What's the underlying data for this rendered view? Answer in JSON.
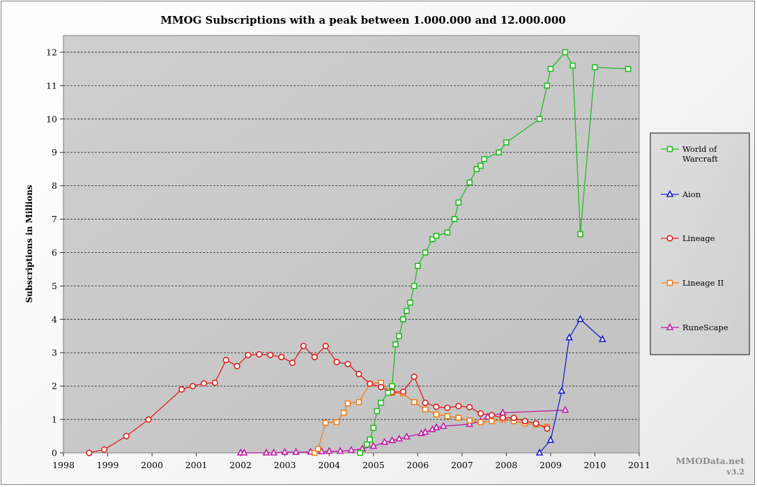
{
  "chart_data": {
    "type": "line",
    "title": "MMOG Subscriptions with a peak between 1.000.000 and 12.000.000",
    "xlabel": "",
    "ylabel": "Subscriptions in Millions",
    "xlim": [
      1998,
      2011
    ],
    "ylim": [
      0,
      12.5
    ],
    "xticks": [
      "1998",
      "1999",
      "2000",
      "2001",
      "2002",
      "2003",
      "2004",
      "2005",
      "2006",
      "2007",
      "2008",
      "2009",
      "2010",
      "2011"
    ],
    "yticks": [
      "0",
      "1",
      "2",
      "3",
      "4",
      "5",
      "6",
      "7",
      "8",
      "9",
      "10",
      "11",
      "12"
    ],
    "grid": "horizontal dashed",
    "legend_position": "right",
    "series": [
      {
        "name": "World of Warcraft",
        "color": "#22bb22",
        "marker": "square",
        "x": [
          2004.7,
          2004.85,
          2004.92,
          2005.0,
          2005.08,
          2005.17,
          2005.33,
          2005.42,
          2005.5,
          2005.58,
          2005.67,
          2005.75,
          2005.83,
          2005.92,
          2006.0,
          2006.17,
          2006.33,
          2006.42,
          2006.67,
          2006.83,
          2006.92,
          2007.17,
          2007.33,
          2007.42,
          2007.5,
          2007.83,
          2008.0,
          2008.75,
          2008.92,
          2009.0,
          2009.33,
          2009.5,
          2009.67,
          2010.0,
          2010.75
        ],
        "y": [
          0,
          0.25,
          0.4,
          0.75,
          1.25,
          1.5,
          1.8,
          2.0,
          3.25,
          3.5,
          4.0,
          4.25,
          4.5,
          5.0,
          5.6,
          6.0,
          6.4,
          6.5,
          6.6,
          7.0,
          7.5,
          8.1,
          8.5,
          8.6,
          8.8,
          9.0,
          9.3,
          10.0,
          11.0,
          11.5,
          12.0,
          11.6,
          6.55,
          11.55,
          11.5
        ]
      },
      {
        "name": "Aion",
        "color": "#1c1ccf",
        "marker": "triangle",
        "x": [
          2008.75,
          2009.0,
          2009.25,
          2009.42,
          2009.67,
          2010.17
        ],
        "y": [
          0,
          0.38,
          1.85,
          3.45,
          4.0,
          3.4
        ]
      },
      {
        "name": "Lineage",
        "color": "#dd1f1f",
        "marker": "circle",
        "x": [
          1998.58,
          1998.92,
          1999.42,
          1999.92,
          2000.67,
          2000.92,
          2001.17,
          2001.42,
          2001.67,
          2001.92,
          2002.17,
          2002.42,
          2002.67,
          2002.92,
          2003.17,
          2003.42,
          2003.67,
          2003.92,
          2004.17,
          2004.42,
          2004.67,
          2004.92,
          2005.17,
          2005.42,
          2005.67,
          2005.92,
          2006.17,
          2006.42,
          2006.67,
          2006.92,
          2007.17,
          2007.42,
          2007.67,
          2007.92,
          2008.17,
          2008.42,
          2008.67,
          2008.92
        ],
        "y": [
          0,
          0.1,
          0.5,
          1.0,
          1.9,
          2.0,
          2.08,
          2.1,
          2.78,
          2.6,
          2.93,
          2.95,
          2.93,
          2.87,
          2.7,
          3.2,
          2.87,
          3.2,
          2.72,
          2.66,
          2.36,
          2.07,
          1.97,
          1.82,
          1.83,
          2.28,
          1.5,
          1.38,
          1.35,
          1.4,
          1.37,
          1.18,
          1.13,
          1.05,
          1.05,
          0.95,
          0.88,
          0.73
        ]
      },
      {
        "name": "Lineage II",
        "color": "#f07d18",
        "marker": "square",
        "x": [
          2003.67,
          2003.75,
          2003.92,
          2004.17,
          2004.33,
          2004.42,
          2004.67,
          2004.92,
          2005.17,
          2005.42,
          2005.67,
          2005.92,
          2006.17,
          2006.42,
          2006.67,
          2006.92,
          2007.17,
          2007.42,
          2007.67,
          2007.92,
          2008.17,
          2008.42,
          2008.67,
          2008.92
        ],
        "y": [
          0,
          0.12,
          0.9,
          0.92,
          1.2,
          1.48,
          1.52,
          2.07,
          2.1,
          1.8,
          1.78,
          1.52,
          1.3,
          1.15,
          1.1,
          1.05,
          0.97,
          0.92,
          0.95,
          1.0,
          0.95,
          0.88,
          0.85,
          0.78
        ]
      },
      {
        "name": "RuneScape",
        "color": "#c01aa8",
        "marker": "triangle",
        "x": [
          2002.0,
          2002.08,
          2002.58,
          2002.75,
          2003.0,
          2003.25,
          2003.58,
          2003.83,
          2004.0,
          2004.25,
          2004.5,
          2004.75,
          2005.0,
          2005.25,
          2005.42,
          2005.58,
          2005.75,
          2006.08,
          2006.17,
          2006.33,
          2006.42,
          2006.58,
          2007.17,
          2007.42,
          2007.58,
          2007.92,
          2009.33
        ],
        "y": [
          0,
          0,
          0,
          0,
          0.02,
          0.02,
          0.03,
          0.04,
          0.05,
          0.05,
          0.08,
          0.12,
          0.2,
          0.32,
          0.37,
          0.42,
          0.48,
          0.58,
          0.62,
          0.7,
          0.76,
          0.8,
          0.86,
          0.95,
          1.08,
          1.2,
          1.28
        ]
      }
    ]
  },
  "watermark": {
    "line1": "MMOData.net",
    "line2": "v3.2"
  }
}
